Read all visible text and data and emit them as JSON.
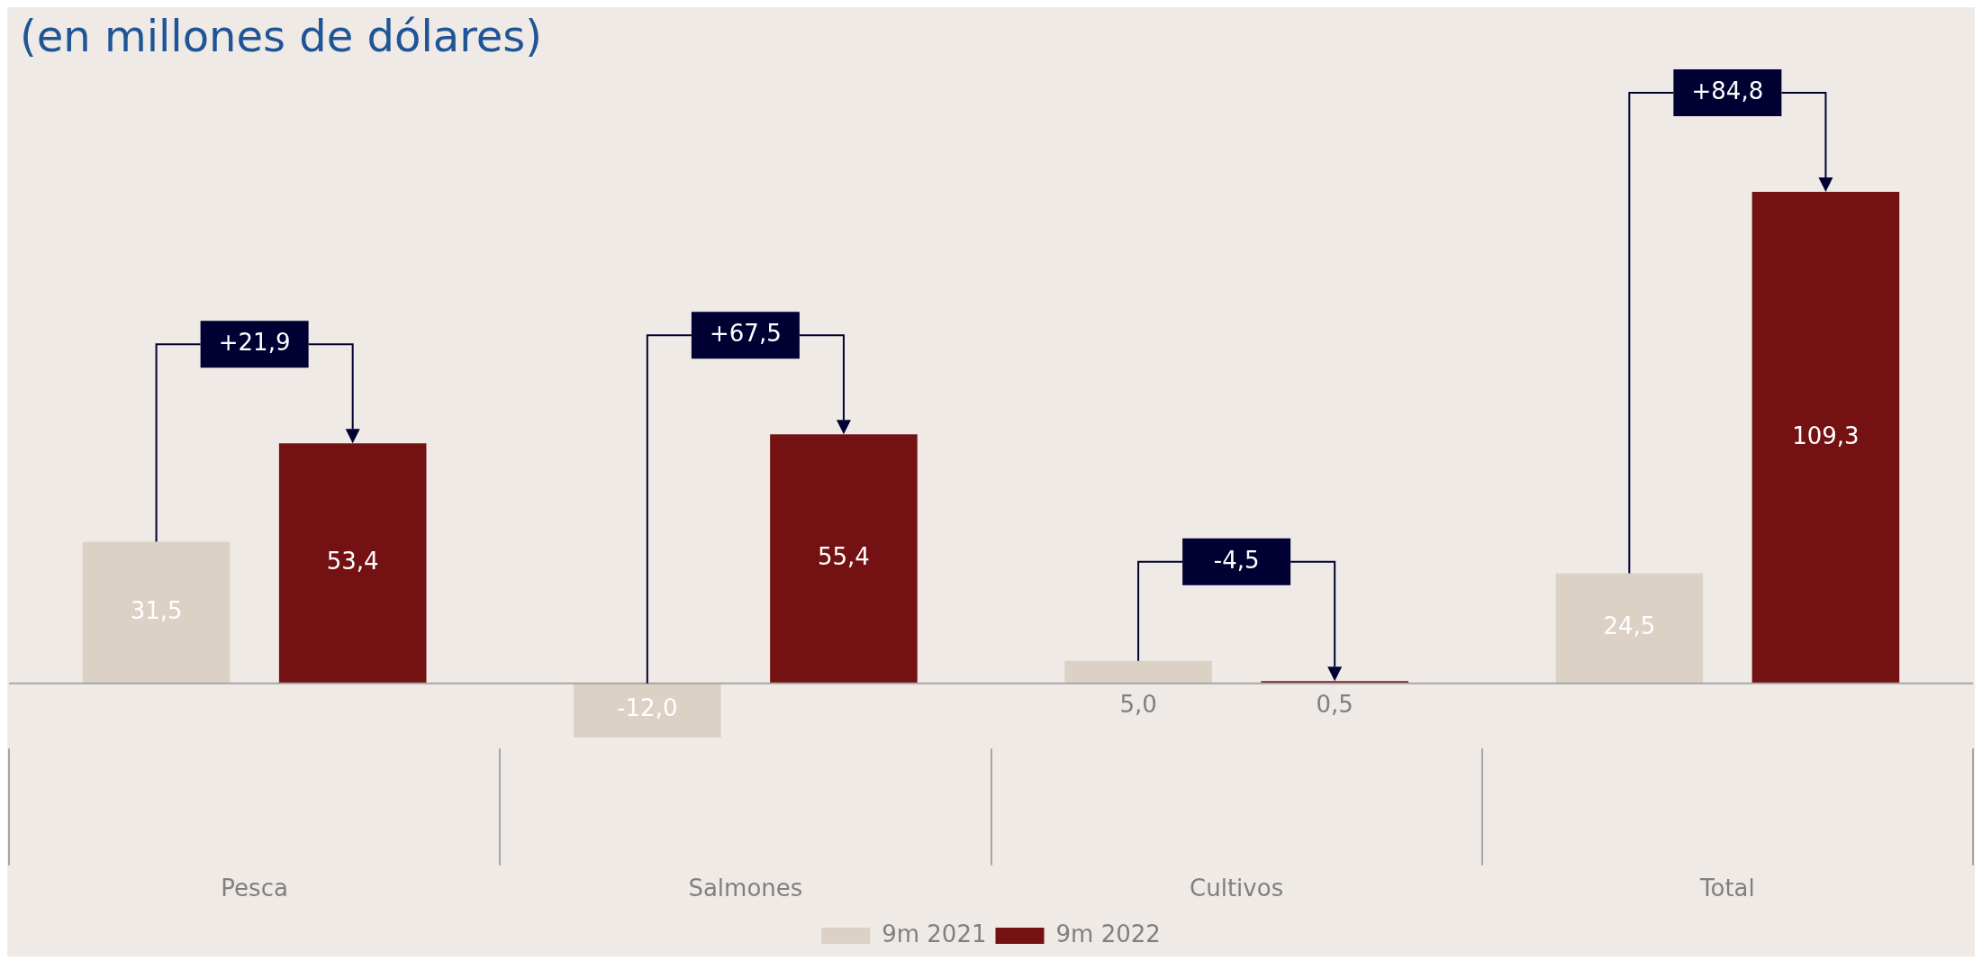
{
  "chart_data": {
    "type": "bar",
    "title": "(en millones de dólares)",
    "categories": [
      "Pesca",
      "Salmones",
      "Cultivos",
      "Total"
    ],
    "series": [
      {
        "name": "9m 2021",
        "color": "#dbd1c4",
        "values": [
          31.5,
          -12.0,
          5.0,
          24.5
        ],
        "value_labels": [
          "31,5",
          "-12,0",
          "5,0",
          "24,5"
        ]
      },
      {
        "name": "9m 2022",
        "color": "#731113",
        "values": [
          53.4,
          55.4,
          0.5,
          109.3
        ],
        "value_labels": [
          "53,4",
          "55,4",
          "0,5",
          "109,3"
        ]
      }
    ],
    "annotations": [
      "+21,9",
      "+67,5",
      "-4,5",
      "+84,8"
    ],
    "legend": "bottom",
    "grid": false
  }
}
